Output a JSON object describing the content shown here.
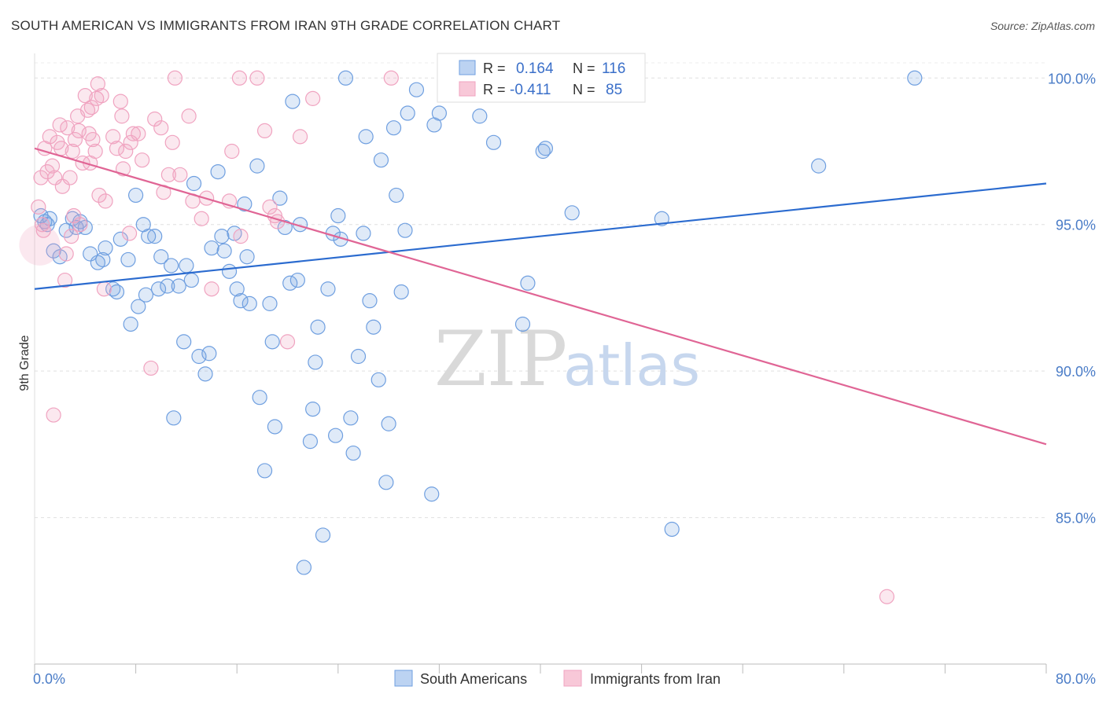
{
  "chart_data": {
    "type": "scatter",
    "title": "SOUTH AMERICAN VS IMMIGRANTS FROM IRAN 9TH GRADE CORRELATION CHART",
    "source": "Source: ZipAtlas.com",
    "xlabel": "",
    "ylabel": "9th Grade",
    "xlim": [
      0,
      80
    ],
    "ylim": [
      80.0,
      101.0
    ],
    "x_tick_labels": [
      "0.0%",
      "80.0%"
    ],
    "y_ticks": [
      85,
      90,
      95,
      100
    ],
    "y_tick_labels": [
      "85.0%",
      "90.0%",
      "95.0%",
      "100.0%"
    ],
    "grid": true,
    "legend_placement": "top-center",
    "watermark": {
      "part1": "ZIP",
      "part2": "atlas"
    },
    "series": [
      {
        "name": "South Americans",
        "color": "#6f9fe0",
        "line_color": "#2b6bcf",
        "r_label": "R =",
        "r_value": "0.164",
        "n_label": "N =",
        "n_value": "116",
        "trend": [
          [
            0,
            92.8
          ],
          [
            80,
            96.4
          ]
        ],
        "points": [
          [
            0.5,
            95.3
          ],
          [
            0.8,
            95.1
          ],
          [
            1.0,
            95.0
          ],
          [
            1.2,
            95.2
          ],
          [
            1.5,
            94.1
          ],
          [
            2.0,
            93.9
          ],
          [
            2.5,
            94.8
          ],
          [
            3.0,
            95.2
          ],
          [
            3.3,
            94.9
          ],
          [
            3.6,
            95.1
          ],
          [
            4.0,
            94.9
          ],
          [
            4.4,
            94.0
          ],
          [
            5.0,
            93.7
          ],
          [
            5.4,
            93.8
          ],
          [
            5.6,
            94.2
          ],
          [
            6.2,
            92.8
          ],
          [
            6.5,
            92.7
          ],
          [
            6.8,
            94.5
          ],
          [
            7.4,
            93.8
          ],
          [
            7.6,
            91.6
          ],
          [
            8.0,
            96.0
          ],
          [
            8.2,
            92.2
          ],
          [
            8.6,
            95.0
          ],
          [
            8.8,
            92.6
          ],
          [
            9.0,
            94.6
          ],
          [
            9.5,
            94.6
          ],
          [
            9.8,
            92.8
          ],
          [
            10.0,
            93.9
          ],
          [
            10.5,
            92.9
          ],
          [
            10.8,
            93.6
          ],
          [
            11.0,
            88.4
          ],
          [
            11.4,
            92.9
          ],
          [
            11.8,
            91.0
          ],
          [
            12.0,
            93.6
          ],
          [
            12.4,
            93.1
          ],
          [
            12.6,
            96.4
          ],
          [
            13.0,
            90.5
          ],
          [
            13.5,
            89.9
          ],
          [
            13.8,
            90.6
          ],
          [
            14.0,
            94.2
          ],
          [
            14.5,
            96.8
          ],
          [
            14.8,
            94.6
          ],
          [
            15.0,
            94.1
          ],
          [
            15.4,
            93.4
          ],
          [
            15.8,
            94.7
          ],
          [
            16.0,
            92.8
          ],
          [
            16.3,
            92.4
          ],
          [
            16.6,
            95.7
          ],
          [
            16.8,
            93.9
          ],
          [
            17.0,
            92.3
          ],
          [
            17.6,
            97.0
          ],
          [
            17.8,
            89.1
          ],
          [
            18.2,
            86.6
          ],
          [
            18.6,
            92.3
          ],
          [
            18.8,
            91.0
          ],
          [
            19.0,
            88.1
          ],
          [
            19.4,
            95.9
          ],
          [
            19.8,
            94.9
          ],
          [
            20.2,
            93.0
          ],
          [
            20.4,
            99.2
          ],
          [
            20.8,
            93.1
          ],
          [
            21.0,
            95.0
          ],
          [
            21.3,
            83.3
          ],
          [
            21.8,
            87.6
          ],
          [
            22.0,
            88.7
          ],
          [
            22.2,
            90.3
          ],
          [
            22.4,
            91.5
          ],
          [
            22.8,
            84.4
          ],
          [
            23.2,
            92.8
          ],
          [
            23.6,
            94.7
          ],
          [
            23.8,
            87.8
          ],
          [
            24.0,
            95.3
          ],
          [
            24.2,
            94.5
          ],
          [
            24.6,
            100.0
          ],
          [
            25.0,
            88.4
          ],
          [
            25.2,
            87.2
          ],
          [
            25.6,
            90.5
          ],
          [
            26.0,
            94.7
          ],
          [
            26.2,
            98.0
          ],
          [
            26.5,
            92.4
          ],
          [
            26.8,
            91.5
          ],
          [
            27.2,
            89.7
          ],
          [
            27.4,
            97.2
          ],
          [
            27.8,
            86.2
          ],
          [
            28.0,
            88.2
          ],
          [
            28.4,
            98.3
          ],
          [
            28.6,
            96.0
          ],
          [
            29.0,
            92.7
          ],
          [
            29.3,
            94.8
          ],
          [
            29.5,
            98.8
          ],
          [
            30.2,
            99.6
          ],
          [
            31.4,
            85.8
          ],
          [
            31.6,
            98.4
          ],
          [
            32.0,
            98.8
          ],
          [
            33.0,
            100.0
          ],
          [
            35.2,
            98.7
          ],
          [
            35.6,
            99.6
          ],
          [
            36.3,
            97.8
          ],
          [
            38.6,
            91.6
          ],
          [
            39.0,
            93.0
          ],
          [
            40.0,
            100.0
          ],
          [
            40.2,
            97.5
          ],
          [
            40.4,
            97.6
          ],
          [
            42.5,
            95.4
          ],
          [
            49.6,
            95.2
          ],
          [
            50.4,
            84.6
          ],
          [
            62.0,
            97.0
          ],
          [
            69.6,
            100.0
          ]
        ]
      },
      {
        "name": "Immigrants from Iran",
        "color": "#f0a3c0",
        "line_color": "#e06595",
        "r_label": "R =",
        "r_value": "-0.411",
        "n_label": "N =",
        "n_value": "85",
        "trend": [
          [
            0,
            97.6
          ],
          [
            80,
            87.5
          ]
        ],
        "points": [
          [
            0.3,
            95.6
          ],
          [
            0.5,
            96.6
          ],
          [
            0.6,
            95.0
          ],
          [
            0.7,
            94.8
          ],
          [
            0.8,
            97.6
          ],
          [
            1.0,
            96.8
          ],
          [
            1.2,
            98.0
          ],
          [
            1.4,
            97.0
          ],
          [
            1.5,
            88.5
          ],
          [
            1.6,
            96.6
          ],
          [
            1.8,
            97.8
          ],
          [
            2.0,
            98.4
          ],
          [
            2.1,
            97.6
          ],
          [
            2.2,
            96.3
          ],
          [
            2.4,
            93.1
          ],
          [
            2.5,
            94.0
          ],
          [
            2.6,
            98.3
          ],
          [
            2.8,
            96.6
          ],
          [
            2.9,
            94.6
          ],
          [
            3.0,
            97.5
          ],
          [
            3.1,
            95.3
          ],
          [
            3.2,
            97.9
          ],
          [
            3.4,
            98.7
          ],
          [
            3.5,
            98.2
          ],
          [
            3.6,
            95.0
          ],
          [
            3.8,
            97.1
          ],
          [
            4.0,
            99.4
          ],
          [
            4.2,
            98.9
          ],
          [
            4.3,
            98.1
          ],
          [
            4.4,
            97.1
          ],
          [
            4.5,
            99.0
          ],
          [
            4.6,
            97.9
          ],
          [
            4.8,
            97.5
          ],
          [
            4.9,
            99.3
          ],
          [
            5.0,
            99.8
          ],
          [
            5.1,
            96.0
          ],
          [
            5.3,
            99.4
          ],
          [
            5.5,
            92.8
          ],
          [
            5.6,
            95.8
          ],
          [
            6.2,
            98.0
          ],
          [
            6.5,
            97.6
          ],
          [
            6.8,
            99.2
          ],
          [
            6.9,
            98.7
          ],
          [
            7.0,
            96.9
          ],
          [
            7.2,
            97.5
          ],
          [
            7.5,
            94.7
          ],
          [
            7.6,
            97.8
          ],
          [
            7.8,
            98.1
          ],
          [
            8.2,
            98.1
          ],
          [
            8.5,
            97.2
          ],
          [
            9.2,
            90.1
          ],
          [
            9.5,
            98.6
          ],
          [
            10.0,
            98.3
          ],
          [
            10.2,
            96.1
          ],
          [
            10.6,
            96.7
          ],
          [
            10.9,
            97.8
          ],
          [
            11.1,
            100.0
          ],
          [
            11.5,
            96.7
          ],
          [
            12.2,
            98.7
          ],
          [
            12.5,
            95.8
          ],
          [
            13.2,
            95.2
          ],
          [
            13.6,
            95.9
          ],
          [
            14.0,
            92.8
          ],
          [
            15.4,
            95.8
          ],
          [
            15.6,
            97.5
          ],
          [
            16.2,
            100.0
          ],
          [
            16.3,
            94.6
          ],
          [
            17.6,
            100.0
          ],
          [
            18.2,
            98.2
          ],
          [
            18.6,
            95.6
          ],
          [
            19.0,
            95.3
          ],
          [
            19.2,
            95.1
          ],
          [
            20.0,
            91.0
          ],
          [
            21.0,
            98.0
          ],
          [
            22.0,
            99.3
          ],
          [
            28.2,
            100.0
          ],
          [
            67.4,
            82.3
          ]
        ]
      }
    ]
  }
}
